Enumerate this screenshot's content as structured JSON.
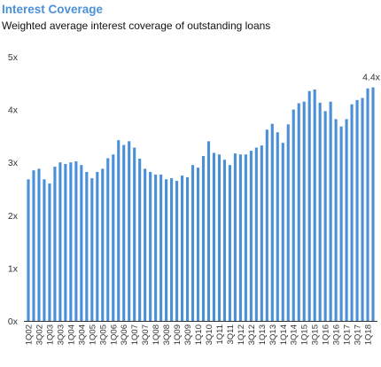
{
  "header": {
    "title": "Interest Coverage",
    "subtitle": "Weighted average interest coverage of outstanding loans"
  },
  "chart_data": {
    "type": "bar",
    "title": "Interest Coverage",
    "subtitle": "Weighted average interest coverage of outstanding loans",
    "xlabel": "",
    "ylabel": "",
    "ylim": [
      0,
      5
    ],
    "y_ticks": [
      "0x",
      "1x",
      "2x",
      "3x",
      "4x",
      "5x"
    ],
    "grid": false,
    "bar_color": "#4a90d9",
    "x_tick_labels": [
      "1Q02",
      "3Q02",
      "1Q03",
      "3Q03",
      "1Q04",
      "3Q04",
      "1Q05",
      "3Q05",
      "1Q06",
      "3Q06",
      "1Q07",
      "3Q07",
      "1Q08",
      "3Q08",
      "1Q09",
      "3Q09",
      "1Q10",
      "3Q10",
      "1Q11",
      "3Q11",
      "1Q12",
      "3Q12",
      "1Q13",
      "3Q13",
      "1Q14",
      "3Q14",
      "1Q15",
      "3Q15",
      "1Q16",
      "3Q16",
      "1Q17",
      "3Q17",
      "1Q18"
    ],
    "categories": [
      "1Q02",
      "2Q02",
      "3Q02",
      "4Q02",
      "1Q03",
      "2Q03",
      "3Q03",
      "4Q03",
      "1Q04",
      "2Q04",
      "3Q04",
      "4Q04",
      "1Q05",
      "2Q05",
      "3Q05",
      "4Q05",
      "1Q06",
      "2Q06",
      "3Q06",
      "4Q06",
      "1Q07",
      "2Q07",
      "3Q07",
      "4Q07",
      "1Q08",
      "2Q08",
      "3Q08",
      "4Q08",
      "1Q09",
      "2Q09",
      "3Q09",
      "4Q09",
      "1Q10",
      "2Q10",
      "3Q10",
      "4Q10",
      "1Q11",
      "2Q11",
      "3Q11",
      "4Q11",
      "1Q12",
      "2Q12",
      "3Q12",
      "4Q12",
      "1Q13",
      "2Q13",
      "3Q13",
      "4Q13",
      "1Q14",
      "2Q14",
      "3Q14",
      "4Q14",
      "1Q15",
      "2Q15",
      "3Q15",
      "4Q15",
      "1Q16",
      "2Q16",
      "3Q16",
      "4Q16",
      "1Q17",
      "2Q17",
      "3Q17",
      "4Q17",
      "1Q18",
      "2Q18"
    ],
    "values": [
      2.68,
      2.85,
      2.88,
      2.68,
      2.6,
      2.92,
      3.0,
      2.97,
      3.0,
      3.02,
      2.95,
      2.82,
      2.7,
      2.82,
      2.88,
      3.08,
      3.15,
      3.42,
      3.33,
      3.4,
      3.28,
      3.07,
      2.88,
      2.82,
      2.77,
      2.77,
      2.68,
      2.7,
      2.65,
      2.75,
      2.72,
      2.95,
      2.9,
      3.12,
      3.4,
      3.18,
      3.15,
      3.05,
      2.95,
      3.17,
      3.15,
      3.15,
      3.22,
      3.28,
      3.32,
      3.62,
      3.73,
      3.57,
      3.37,
      3.72,
      4.0,
      4.12,
      4.15,
      4.35,
      4.38,
      4.13,
      3.97,
      4.15,
      3.82,
      3.68,
      3.82,
      4.1,
      4.18,
      4.22,
      4.4,
      4.42
    ],
    "annotations": [
      {
        "label": "4.4x",
        "category": "2Q18"
      }
    ]
  }
}
